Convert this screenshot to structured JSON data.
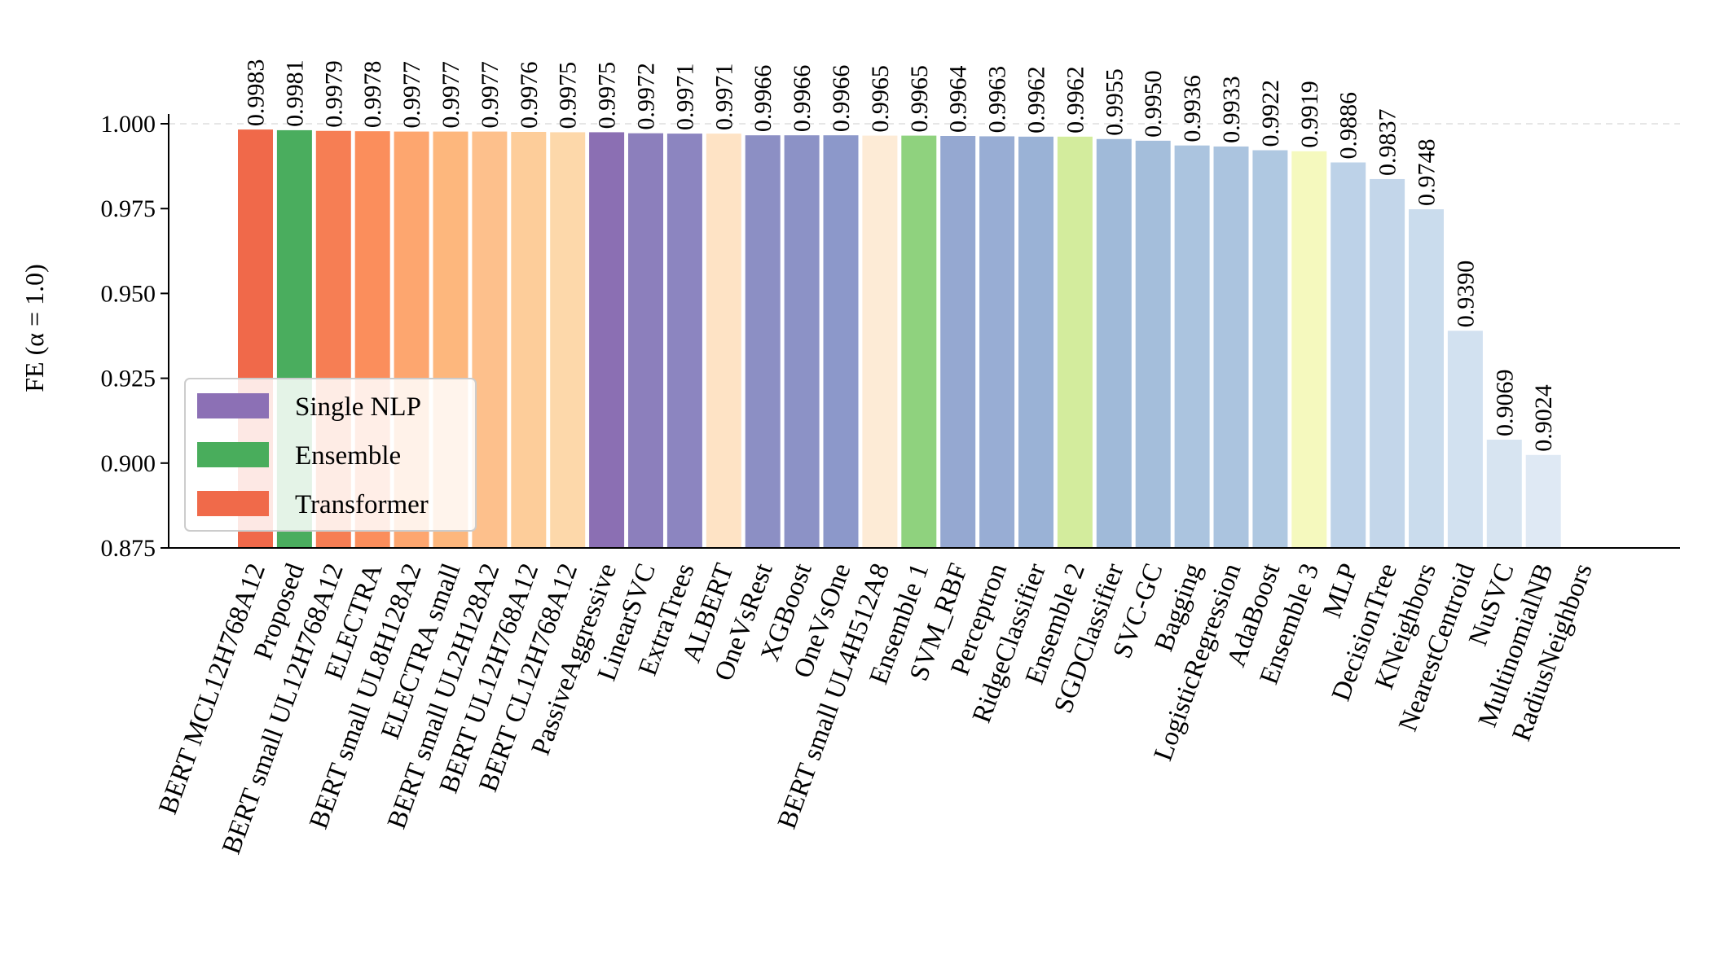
{
  "chart_data": {
    "type": "bar",
    "title": "",
    "xlabel": "",
    "ylabel": "FE (α = 1.0)",
    "ylim": [
      0.875,
      1.0
    ],
    "yticks": [
      "0.875",
      "0.900",
      "0.925",
      "0.950",
      "0.975",
      "1.000"
    ],
    "categories": [
      "BERT MCL12H768A12",
      "Proposed",
      "BERT small UL12H768A12",
      "ELECTRA",
      "BERT small UL8H128A2",
      "ELECTRA small",
      "BERT small UL2H128A2",
      "BERT UL12H768A12",
      "BERT CL12H768A12",
      "PassiveAggressive",
      "LinearSVC",
      "ExtraTrees",
      "ALBERT",
      "OneVsRest",
      "XGBoost",
      "OneVsOne",
      "BERT small UL4H512A8",
      "Ensemble 1",
      "SVM_RBF",
      "Perceptron",
      "RidgeClassifier",
      "Ensemble 2",
      "SGDClassifier",
      "SVC-GC",
      "Bagging",
      "LogisticRegression",
      "AdaBoost",
      "Ensemble 3",
      "MLP",
      "DecisionTree",
      "KNeighbors",
      "NearestCentroid",
      "NuSVC",
      "MultinomialNB",
      "RadiusNeighbors"
    ],
    "values": [
      0.9983,
      0.9981,
      0.9979,
      0.9978,
      0.9977,
      0.9977,
      0.9977,
      0.9976,
      0.9975,
      0.9975,
      0.9972,
      0.9971,
      0.9971,
      0.9966,
      0.9966,
      0.9966,
      0.9965,
      0.9965,
      0.9964,
      0.9963,
      0.9962,
      0.9962,
      0.9955,
      0.995,
      0.9936,
      0.9933,
      0.9922,
      0.9919,
      0.9886,
      0.9837,
      0.9748,
      0.939,
      0.9069,
      0.9024,
      null
    ],
    "value_labels": [
      "0.9983",
      "0.9981",
      "0.9979",
      "0.9978",
      "0.9977",
      "0.9977",
      "0.9977",
      "0.9976",
      "0.9975",
      "0.9975",
      "0.9972",
      "0.9971",
      "0.9971",
      "0.9966",
      "0.9966",
      "0.9966",
      "0.9965",
      "0.9965",
      "0.9964",
      "0.9963",
      "0.9962",
      "0.9962",
      "0.9955",
      "0.9950",
      "0.9936",
      "0.9933",
      "0.9922",
      "0.9919",
      "0.9886",
      "0.9837",
      "0.9748",
      "0.9390",
      "0.9069",
      "0.9024",
      ""
    ],
    "colors": [
      "#f0694a",
      "#4aad5e",
      "#f67e54",
      "#fb8e5c",
      "#fda66f",
      "#fdb77d",
      "#fdc08c",
      "#fdcd9a",
      "#fdd8aa",
      "#8b6fb3",
      "#8c7fbc",
      "#8c85c0",
      "#fee3c5",
      "#8c8fc4",
      "#8c92c6",
      "#8c98ca",
      "#fdebd6",
      "#8fd27e",
      "#95a8d1",
      "#98add4",
      "#9ab2d6",
      "#d3ec9d",
      "#a0bad9",
      "#a4bedb",
      "#abc4df",
      "#abc4df",
      "#afc8e1",
      "#f5f9be",
      "#bdd2e8",
      "#c3d6ea",
      "#cadced",
      "#d2e1f0",
      "#d7e4f1",
      "#dfe9f4",
      "#e6eef7"
    ],
    "legend": {
      "position": "lower-left",
      "entries": [
        {
          "label": "Single NLP",
          "color": "#8c70b5"
        },
        {
          "label": "Ensemble",
          "color": "#49ad5c"
        },
        {
          "label": "Transformer",
          "color": "#f06a4a"
        }
      ]
    },
    "grid": false,
    "reference_line": 1.0
  }
}
